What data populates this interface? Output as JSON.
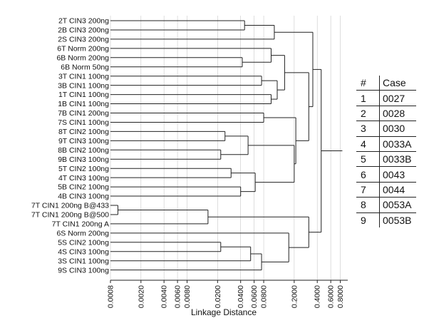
{
  "chart_data": {
    "type": "dendrogram",
    "xlabel": "Linkage Distance",
    "x_scale": "log",
    "xlim": [
      0.0008,
      1.0
    ],
    "ticks": [
      "0.0008",
      "0.0020",
      "0.0040",
      "0.0060",
      "0.0080",
      "0.0200",
      "0.0400",
      "0.0600",
      "0.0800",
      "0.2000",
      "0.4000",
      "0.6000",
      "0.8000"
    ],
    "grid": true,
    "leaves": [
      "2T CIN3 200ng",
      "2B CIN3 200ng",
      "2S CIN3 200ng",
      "6T Norm 200ng",
      "6B Norm 200ng",
      "6B Norm 50ng",
      "3T CIN1 100ng",
      "3B CIN1 100ng",
      "1T CIN1 100ng",
      "1B CIN1 100ng",
      "7B CIN1 200ng",
      "7S CIN1 100ng",
      "8T CIN2 100ng",
      "9T CIN3 100ng",
      "8B CIN2 100ng",
      "9B CIN3 100ng",
      "5T CIN2 100ng",
      "4T CIN3 100ng",
      "5B CIN2 100ng",
      "4B CIN3 100ng",
      "7T CIN1 200ng B@433",
      "7T CIN1 200ng B@500",
      "7T CIN1 200ng A",
      "6S Norm 200ng",
      "5S CIN2 100ng",
      "4S CIN3 100ng",
      "3S CIN1 100ng",
      "9S CIN3 100ng"
    ],
    "merges": [
      {
        "id": "m1",
        "children": [
          "L0",
          "L1"
        ],
        "height": 0.045
      },
      {
        "id": "m2",
        "children": [
          "m1",
          "L2"
        ],
        "height": 0.11
      },
      {
        "id": "m3",
        "children": [
          "L4",
          "L5"
        ],
        "height": 0.042
      },
      {
        "id": "m4",
        "children": [
          "L3",
          "m3"
        ],
        "height": 0.1
      },
      {
        "id": "m5",
        "children": [
          "L6",
          "L7"
        ],
        "height": 0.075
      },
      {
        "id": "m6",
        "children": [
          "L8",
          "L9"
        ],
        "height": 0.1
      },
      {
        "id": "m7",
        "children": [
          "m5",
          "m6"
        ],
        "height": 0.12
      },
      {
        "id": "m8",
        "children": [
          "m4",
          "m7"
        ],
        "height": 0.15
      },
      {
        "id": "m9",
        "children": [
          "L10",
          "L11"
        ],
        "height": 0.08
      },
      {
        "id": "m10",
        "children": [
          "L12",
          "L13"
        ],
        "height": 0.025
      },
      {
        "id": "m11",
        "children": [
          "L14",
          "L15"
        ],
        "height": 0.022
      },
      {
        "id": "m12",
        "children": [
          "m10",
          "m11"
        ],
        "height": 0.05
      },
      {
        "id": "m13",
        "children": [
          "L16",
          "L17"
        ],
        "height": 0.03
      },
      {
        "id": "m14",
        "children": [
          "L18",
          "L19"
        ],
        "height": 0.04
      },
      {
        "id": "m15",
        "children": [
          "m13",
          "m14"
        ],
        "height": 0.062
      },
      {
        "id": "m16",
        "children": [
          "m12",
          "m15"
        ],
        "height": 0.2
      },
      {
        "id": "m17",
        "children": [
          "m9",
          "m16"
        ],
        "height": 0.21
      },
      {
        "id": "m18",
        "children": [
          "m8",
          "m17"
        ],
        "height": 0.31
      },
      {
        "id": "m19",
        "children": [
          "m2",
          "m18"
        ],
        "height": 0.35
      },
      {
        "id": "m20",
        "children": [
          "L20",
          "L21"
        ],
        "height": 0.001
      },
      {
        "id": "m21",
        "children": [
          "m20",
          "L22"
        ],
        "height": 0.015
      },
      {
        "id": "m22",
        "children": [
          "L24",
          "L25"
        ],
        "height": 0.022
      },
      {
        "id": "m23",
        "children": [
          "m22",
          "L26"
        ],
        "height": 0.054
      },
      {
        "id": "m24",
        "children": [
          "m23",
          "L27"
        ],
        "height": 0.075
      },
      {
        "id": "m25",
        "children": [
          "L23",
          "m24"
        ],
        "height": 0.17
      },
      {
        "id": "m26",
        "children": [
          "m21",
          "m25"
        ],
        "height": 0.31
      },
      {
        "id": "m27",
        "children": [
          "m19",
          "m26"
        ],
        "height": 0.45
      },
      {
        "id": "m28",
        "children": [
          "m27"
        ],
        "height": 0.85
      }
    ]
  },
  "case_table": {
    "header": {
      "num": "#",
      "case": "Case"
    },
    "rows": [
      {
        "num": "1",
        "case": "0027"
      },
      {
        "num": "2",
        "case": "0028"
      },
      {
        "num": "3",
        "case": "0030"
      },
      {
        "num": "4",
        "case": "0033A"
      },
      {
        "num": "5",
        "case": "0033B"
      },
      {
        "num": "6",
        "case": "0043"
      },
      {
        "num": "7",
        "case": "0044"
      },
      {
        "num": "8",
        "case": "0053A"
      },
      {
        "num": "9",
        "case": "0053B"
      }
    ]
  }
}
